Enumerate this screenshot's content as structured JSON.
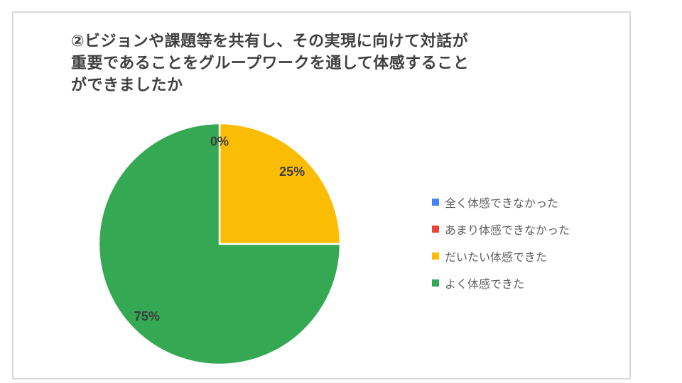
{
  "chart_data": {
    "type": "pie",
    "title": "②ビジョンや課題等を共有し、その実現に向けて対話が重要であることをグループワークを通して体感することができましたか",
    "title_lines": [
      "②ビジョンや課題等を共有し、その実現に向けて対話が",
      "重要であることをグループワークを通して体感すること",
      "ができましたか"
    ],
    "categories": [
      "全く体感できなかった",
      "あまり体感できなかった",
      "だいたい体感できた",
      "よく体感できた"
    ],
    "values": [
      0,
      0,
      25,
      75
    ],
    "unit": "%",
    "slice_labels": [
      "0%",
      "25%",
      "75%"
    ],
    "colors": [
      "#4285F4",
      "#EA4335",
      "#FBBC04",
      "#34A853"
    ],
    "legend_position": "right",
    "pie_start_angle_deg": 0,
    "pie_direction": "clockwise",
    "title_color": "#404040",
    "slice_label_color": "#3d3d3d",
    "legend_text_color": "#5f5f5f",
    "slice_border_color": "#ffffff",
    "card_border_color": "#d9d9d9",
    "background_color": "#ffffff"
  }
}
